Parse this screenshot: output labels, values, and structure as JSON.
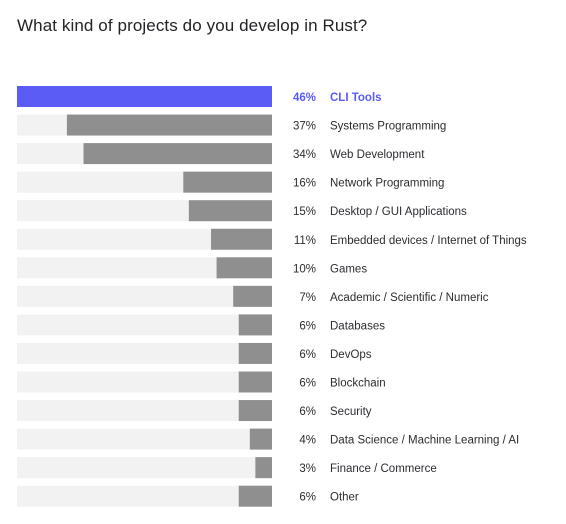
{
  "chart_data": {
    "type": "bar",
    "orientation": "horizontal",
    "title": "What kind of projects do you develop in Rust?",
    "xlabel": "",
    "ylabel": "",
    "value_suffix": "%",
    "xlim": [
      0,
      46
    ],
    "grid": false,
    "legend": "none",
    "categories": [
      "CLI Tools",
      "Systems Programming",
      "Web Development",
      "Network Programming",
      "Desktop / GUI Applications",
      "Embedded devices / Internet of Things",
      "Games",
      "Academic / Scientific / Numeric",
      "Databases",
      "DevOps",
      "Blockchain",
      "Security",
      "Data Science / Machine Learning / AI",
      "Finance / Commerce",
      "Other"
    ],
    "values": [
      46,
      37,
      34,
      16,
      15,
      11,
      10,
      7,
      6,
      6,
      6,
      6,
      4,
      3,
      6
    ],
    "highlighted": [
      "CLI Tools"
    ],
    "colors": {
      "highlight": "#5b5bf5",
      "bar": "#8f8f8f",
      "track": "#f2f2f2",
      "label": "#2b2c30"
    }
  }
}
